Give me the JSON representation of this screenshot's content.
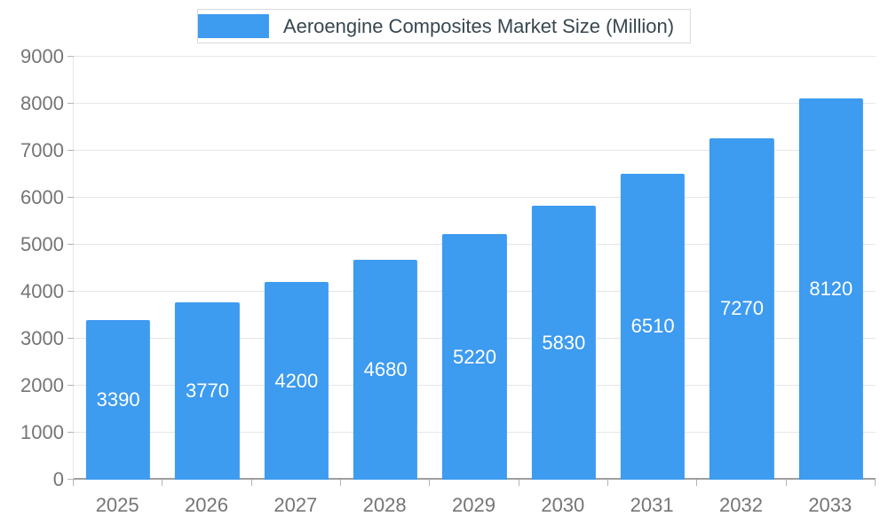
{
  "chart_data": {
    "type": "bar",
    "title": "Aeroengine Composites Market Size (Million)",
    "categories": [
      "2025",
      "2026",
      "2027",
      "2028",
      "2029",
      "2030",
      "2031",
      "2032",
      "2033"
    ],
    "values": [
      3390,
      3770,
      4200,
      4680,
      5220,
      5830,
      6510,
      7270,
      8120
    ],
    "ylim": [
      0,
      9000
    ],
    "ytick_step": 1000,
    "bar_color": "#3D9BF0",
    "bar_label_color": "#ffffff",
    "grid": true,
    "legend_position": "top-center"
  }
}
